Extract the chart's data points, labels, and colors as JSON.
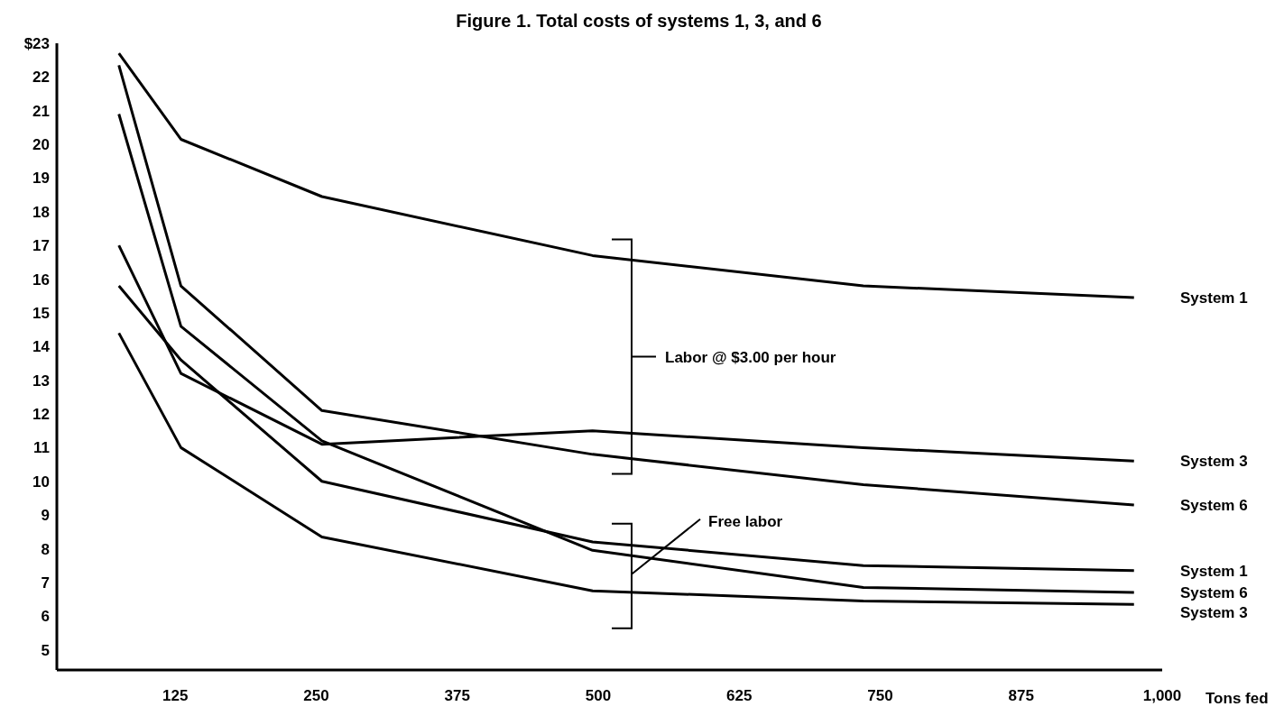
{
  "chart_data": {
    "type": "line",
    "title": "Figure 1. Total costs of systems 1, 3, and 6",
    "xlabel": "Tons fed",
    "x": [
      75,
      130,
      255,
      495,
      735,
      975
    ],
    "series": [
      {
        "name": "System 1",
        "color": "#000000",
        "values": [
          22.7,
          20.15,
          18.45,
          16.7,
          15.8,
          15.45
        ]
      },
      {
        "name": "System 3",
        "color": "#000000",
        "values": [
          17.0,
          13.2,
          11.1,
          11.5,
          11.0,
          10.6
        ]
      },
      {
        "name": "System 6",
        "color": "#000000",
        "values": [
          22.35,
          15.8,
          12.1,
          10.8,
          9.9,
          9.3
        ]
      },
      {
        "name": "System 1",
        "color": "#000000",
        "values": [
          15.8,
          13.6,
          10.0,
          8.2,
          7.5,
          7.35
        ]
      },
      {
        "name": "System 6",
        "color": "#000000",
        "values": [
          20.9,
          14.6,
          11.2,
          7.95,
          6.85,
          6.7
        ]
      },
      {
        "name": "System 3",
        "color": "#000000",
        "values": [
          14.4,
          11.0,
          8.35,
          6.75,
          6.45,
          6.35
        ]
      }
    ],
    "xlim": [
      20,
      1000
    ],
    "xticks": [
      125,
      250,
      375,
      500,
      625,
      750,
      875,
      {
        "value": 1000,
        "label": "1,000"
      }
    ],
    "ylim": [
      4.4,
      23
    ],
    "yticks": [
      5,
      6,
      7,
      8,
      9,
      10,
      11,
      12,
      13,
      14,
      15,
      16,
      17,
      18,
      19,
      20,
      21,
      22,
      {
        "value": 23,
        "label": "$23"
      }
    ],
    "annotations": [
      "Labor @ $3.00 per hour",
      "Free labor"
    ],
    "grid": false,
    "legend": false,
    "marker": "none",
    "line_style": "solid"
  }
}
